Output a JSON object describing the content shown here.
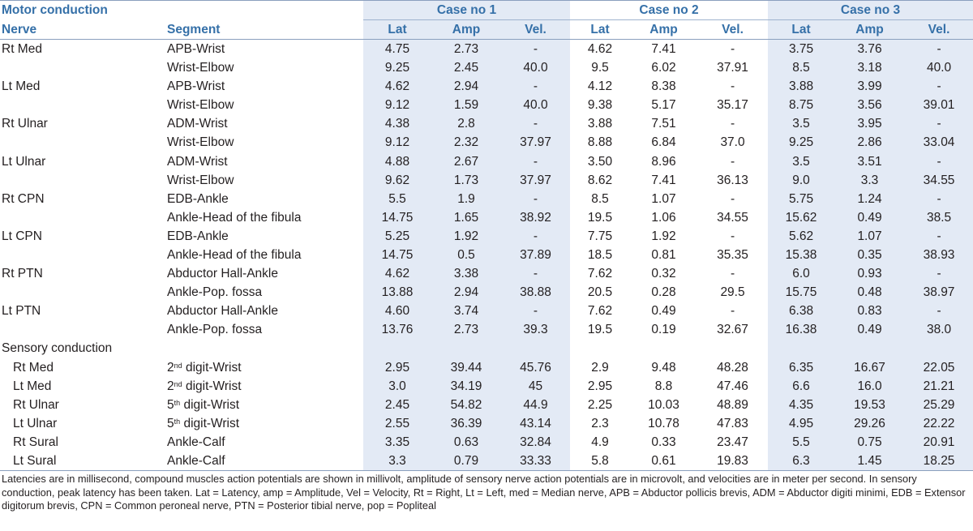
{
  "header": {
    "section_motor": "Motor conduction",
    "cases": [
      "Case no 1",
      "Case no 2",
      "Case no 3"
    ],
    "col_nerve": "Nerve",
    "col_segment": "Segment",
    "sub_cols": [
      "Lat",
      "Amp",
      "Vel."
    ]
  },
  "motor_rows": [
    {
      "nerve": "Rt Med",
      "segment": "APB-Wrist",
      "v": [
        "4.75",
        "2.73",
        "-",
        "4.62",
        "7.41",
        "-",
        "3.75",
        "3.76",
        "-"
      ]
    },
    {
      "nerve": "",
      "segment": "Wrist-Elbow",
      "v": [
        "9.25",
        "2.45",
        "40.0",
        "9.5",
        "6.02",
        "37.91",
        "8.5",
        "3.18",
        "40.0"
      ]
    },
    {
      "nerve": "Lt Med",
      "segment": "APB-Wrist",
      "v": [
        "4.62",
        "2.94",
        "-",
        "4.12",
        "8.38",
        "-",
        "3.88",
        "3.99",
        "-"
      ]
    },
    {
      "nerve": "",
      "segment": "Wrist-Elbow",
      "v": [
        "9.12",
        "1.59",
        "40.0",
        "9.38",
        "5.17",
        "35.17",
        "8.75",
        "3.56",
        "39.01"
      ]
    },
    {
      "nerve": "Rt Ulnar",
      "segment": "ADM-Wrist",
      "v": [
        "4.38",
        "2.8",
        "-",
        "3.88",
        "7.51",
        "-",
        "3.5",
        "3.95",
        "-"
      ]
    },
    {
      "nerve": "",
      "segment": "Wrist-Elbow",
      "v": [
        "9.12",
        "2.32",
        "37.97",
        "8.88",
        "6.84",
        "37.0",
        "9.25",
        "2.86",
        "33.04"
      ]
    },
    {
      "nerve": "Lt Ulnar",
      "segment": "ADM-Wrist",
      "v": [
        "4.88",
        "2.67",
        "-",
        "3.50",
        "8.96",
        "-",
        "3.5",
        "3.51",
        "-"
      ]
    },
    {
      "nerve": "",
      "segment": "Wrist-Elbow",
      "v": [
        "9.62",
        "1.73",
        "37.97",
        "8.62",
        "7.41",
        "36.13",
        "9.0",
        "3.3",
        "34.55"
      ]
    },
    {
      "nerve": "Rt CPN",
      "segment": "EDB-Ankle",
      "v": [
        "5.5",
        "1.9",
        "-",
        "8.5",
        "1.07",
        "-",
        "5.75",
        "1.24",
        "-"
      ]
    },
    {
      "nerve": "",
      "segment": "Ankle-Head of the fibula",
      "v": [
        "14.75",
        "1.65",
        "38.92",
        "19.5",
        "1.06",
        "34.55",
        "15.62",
        "0.49",
        "38.5"
      ]
    },
    {
      "nerve": "Lt CPN",
      "segment": "EDB-Ankle",
      "v": [
        "5.25",
        "1.92",
        "-",
        "7.75",
        "1.92",
        "-",
        "5.62",
        "1.07",
        "-"
      ]
    },
    {
      "nerve": "",
      "segment": "Ankle-Head of the fibula",
      "v": [
        "14.75",
        "0.5",
        "37.89",
        "18.5",
        "0.81",
        "35.35",
        "15.38",
        "0.35",
        "38.93"
      ]
    },
    {
      "nerve": "Rt PTN",
      "segment": "Abductor Hall-Ankle",
      "v": [
        "4.62",
        "3.38",
        "-",
        "7.62",
        "0.32",
        "-",
        "6.0",
        "0.93",
        "-"
      ]
    },
    {
      "nerve": "",
      "segment": "Ankle-Pop. fossa",
      "v": [
        "13.88",
        "2.94",
        "38.88",
        "20.5",
        "0.28",
        "29.5",
        "15.75",
        "0.48",
        "38.97"
      ]
    },
    {
      "nerve": "Lt PTN",
      "segment": "Abductor Hall-Ankle",
      "v": [
        "4.60",
        "3.74",
        "-",
        "7.62",
        "0.49",
        "-",
        "6.38",
        "0.83",
        "-"
      ]
    },
    {
      "nerve": "",
      "segment": "Ankle-Pop. fossa",
      "v": [
        "13.76",
        "2.73",
        "39.3",
        "19.5",
        "0.19",
        "32.67",
        "16.38",
        "0.49",
        "38.0"
      ]
    }
  ],
  "section_sensory": "Sensory conduction",
  "sensory_rows": [
    {
      "nerve": "Rt Med",
      "seg_sup": "nd",
      "seg_pre": "2",
      "seg_post": " digit-Wrist",
      "v": [
        "2.95",
        "39.44",
        "45.76",
        "2.9",
        "9.48",
        "48.28",
        "6.35",
        "16.67",
        "22.05"
      ]
    },
    {
      "nerve": "Lt Med",
      "seg_sup": "nd",
      "seg_pre": "2",
      "seg_post": " digit-Wrist",
      "v": [
        "3.0",
        "34.19",
        "45",
        "2.95",
        "8.8",
        "47.46",
        "6.6",
        "16.0",
        "21.21"
      ]
    },
    {
      "nerve": "Rt Ulnar",
      "seg_sup": "th",
      "seg_pre": "5",
      "seg_post": " digit-Wrist",
      "v": [
        "2.45",
        "54.82",
        "44.9",
        "2.25",
        "10.03",
        "48.89",
        "4.35",
        "19.53",
        "25.29"
      ]
    },
    {
      "nerve": "Lt Ulnar",
      "seg_sup": "th",
      "seg_pre": "5",
      "seg_post": " digit-Wrist",
      "v": [
        "2.55",
        "36.39",
        "43.14",
        "2.3",
        "10.78",
        "47.83",
        "4.95",
        "29.26",
        "22.22"
      ]
    },
    {
      "nerve": "Rt Sural",
      "seg_sup": "",
      "seg_pre": "Ankle-Calf",
      "seg_post": "",
      "v": [
        "3.35",
        "0.63",
        "32.84",
        "4.9",
        "0.33",
        "23.47",
        "5.5",
        "0.75",
        "20.91"
      ]
    },
    {
      "nerve": "Lt Sural",
      "seg_sup": "",
      "seg_pre": "Ankle-Calf",
      "seg_post": "",
      "v": [
        "3.3",
        "0.79",
        "33.33",
        "5.8",
        "0.61",
        "19.83",
        "6.3",
        "1.45",
        "18.25"
      ]
    }
  ],
  "footnote": "Latencies are in millisecond, compound muscles action potentials are shown in millivolt, amplitude of sensory nerve action potentials are in microvolt, and velocities are in meter per second. In sensory conduction, peak latency has been taken. Lat = Latency, amp = Amplitude, Vel = Velocity, Rt = Right, Lt = Left, med = Median nerve, APB = Abductor pollicis brevis, ADM = Abductor digiti minimi, EDB = Extensor digitorum brevis, CPN = Common peroneal nerve, PTN = Posterior tibial nerve, pop = Popliteal",
  "colors": {
    "header_text": "#3570a8",
    "shade": "#e3eaf5",
    "rule": "#8a9fbe"
  }
}
